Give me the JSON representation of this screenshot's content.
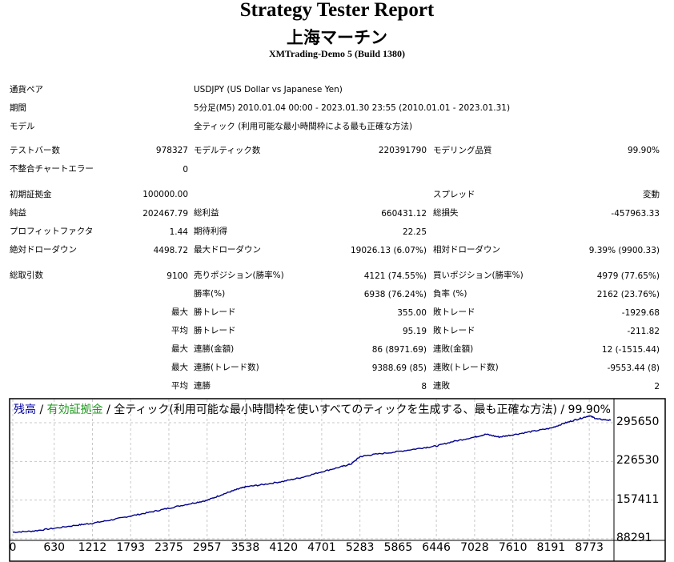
{
  "header": {
    "title": "Strategy Tester Report",
    "ea_name": "上海マーチン",
    "server": "XMTrading-Demo 5 (Build 1380)"
  },
  "info": {
    "symbol_label": "通貨ペア",
    "symbol_value": "USDJPY (US Dollar vs Japanese Yen)",
    "period_label": "期間",
    "period_value": "5分足(M5) 2010.01.04 00:00 - 2023.01.30 23:55 (2010.01.01 - 2023.01.31)",
    "model_label": "モデル",
    "model_value": "全ティック (利用可能な最小時間枠による最も正確な方法)"
  },
  "stats": {
    "bars_label": "テストバー数",
    "bars_value": "978327",
    "ticks_label": "モデルティック数",
    "ticks_value": "220391790",
    "quality_label": "モデリング品質",
    "quality_value": "99.90%",
    "mismatch_label": "不整合チャートエラー",
    "mismatch_value": "0",
    "deposit_label": "初期証拠金",
    "deposit_value": "100000.00",
    "spread_label": "スプレッド",
    "spread_value": "変動",
    "net_label": "純益",
    "net_value": "202467.79",
    "gross_profit_label": "総利益",
    "gross_profit_value": "660431.12",
    "gross_loss_label": "総損失",
    "gross_loss_value": "-457963.33",
    "pf_label": "プロフィットファクタ",
    "pf_value": "1.44",
    "expected_label": "期待利得",
    "expected_value": "22.25",
    "abs_dd_label": "絶対ドローダウン",
    "abs_dd_value": "4498.72",
    "max_dd_label": "最大ドローダウン",
    "max_dd_value": "19026.13 (6.07%)",
    "rel_dd_label": "相対ドローダウン",
    "rel_dd_value": "9.39% (9900.33)",
    "total_trades_label": "総取引数",
    "total_trades_value": "9100",
    "short_label": "売りポジション(勝率%)",
    "short_value": "4121 (74.55%)",
    "long_label": "買いポジション(勝率%)",
    "long_value": "4979 (77.65%)",
    "win_rate_label": "勝率(%)",
    "win_rate_value": "6938 (76.24%)",
    "loss_rate_label": "負率 (%)",
    "loss_rate_value": "2162 (23.76%)",
    "max_label": "最大",
    "avg_label": "平均",
    "win_trade_label": "勝トレード",
    "loss_trade_label": "敗トレード",
    "max_win_value": "355.00",
    "max_loss_value": "-1929.68",
    "avg_win_value": "95.19",
    "avg_loss_value": "-211.82",
    "consec_win_amt_label": "連勝(金額)",
    "consec_win_amt_value": "86 (8971.69)",
    "consec_loss_amt_label": "連敗(金額)",
    "consec_loss_amt_value": "12 (-1515.44)",
    "consec_win_cnt_label": "連勝(トレード数)",
    "consec_win_cnt_value": "9388.69 (85)",
    "consec_loss_cnt_label": "連敗(トレード数)",
    "consec_loss_cnt_value": "-9553.44 (8)",
    "avg_consec_win_label": "連勝",
    "avg_consec_win_value": "8",
    "avg_consec_loss_label": "連敗",
    "avg_consec_loss_value": "2"
  },
  "chart_data": {
    "type": "line",
    "legend": {
      "balance": "残高",
      "sep1": " / ",
      "equity": "有効証拠金",
      "rest": " / 全ティック(利用可能な最小時間枠を使いすべてのティックを生成する、最も正確な方法) / 99.90%"
    },
    "yticks": [
      "295650",
      "226530",
      "157411",
      "88291"
    ],
    "xticks": [
      "0",
      "630",
      "1212",
      "1793",
      "2375",
      "2957",
      "3538",
      "4120",
      "4701",
      "5283",
      "5865",
      "6446",
      "7028",
      "7610",
      "8191",
      "8773"
    ],
    "xlim": [
      0,
      9100
    ],
    "ylim": [
      88291,
      295650
    ],
    "series": [
      {
        "name": "残高",
        "color": "#00008b",
        "x": [
          0,
          300,
          630,
          1000,
          1212,
          1500,
          1793,
          2100,
          2375,
          2700,
          2957,
          3200,
          3400,
          3538,
          3800,
          4120,
          4400,
          4701,
          5000,
          5150,
          5283,
          5500,
          5865,
          6200,
          6446,
          6700,
          7028,
          7200,
          7400,
          7610,
          7900,
          8191,
          8400,
          8600,
          8773,
          8900,
          9100
        ],
        "y": [
          100000,
          102000,
          107000,
          113000,
          116000,
          122000,
          129000,
          136000,
          143000,
          151000,
          157000,
          168000,
          176000,
          181000,
          185000,
          191000,
          198000,
          208000,
          217000,
          222000,
          235000,
          239000,
          244000,
          250000,
          254000,
          262000,
          270000,
          275000,
          270000,
          274000,
          280000,
          286000,
          295000,
          302000,
          308000,
          302000,
          300000
        ]
      }
    ]
  }
}
